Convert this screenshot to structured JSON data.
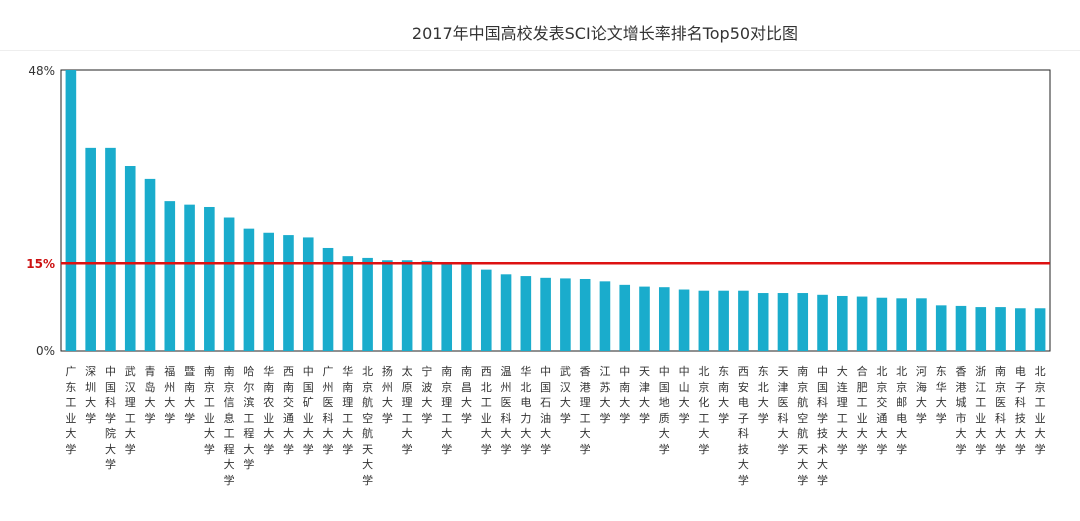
{
  "chart_data": {
    "type": "bar",
    "title": "2017年中国高校发表SCI论文增长率排名Top50对比图",
    "ylim": [
      0,
      48
    ],
    "y_ticks": [
      "48%",
      "15%",
      "0%"
    ],
    "reference_line": {
      "value": 15,
      "label": "15%",
      "color": "#dd1111"
    },
    "bar_color": "#1aaccc",
    "categories": [
      "广东工业大学",
      "深圳大学",
      "中国科学院大学",
      "武汉理工大学",
      "青岛大学",
      "福州大学",
      "暨南大学",
      "南京工业大学",
      "南京信息工程大学",
      "哈尔滨工程大学",
      "华南农业大学",
      "西南交通大学",
      "中国矿业大学",
      "广州医科大学",
      "华南理工大学",
      "北京航空航天大学",
      "扬州大学",
      "太原理工大学",
      "宁波大学",
      "南京理工大学",
      "南昌大学",
      "西北工业大学",
      "温州医科大学",
      "华北电力大学",
      "中国石油大学",
      "武汉大学",
      "香港理工大学",
      "江苏大学",
      "中南大学",
      "天津大学",
      "中国地质大学",
      "中山大学",
      "北京化工大学",
      "东南大学",
      "西安电子科技大学",
      "东北大学",
      "天津医科大学",
      "南京航空航天大学",
      "中国科学技术大学",
      "大连理工大学",
      "合肥工业大学",
      "北京交通大学",
      "北京邮电大学",
      "河海大学",
      "东华大学",
      "香港城市大学",
      "浙江工业大学",
      "南京医科大学",
      "电子科技大学",
      "北京工业大学"
    ],
    "values": [
      48,
      34.7,
      34.7,
      31.6,
      29.4,
      25.6,
      25,
      24.6,
      22.8,
      20.9,
      20.2,
      19.8,
      19.4,
      17.6,
      16.2,
      15.9,
      15.5,
      15.5,
      15.4,
      15.2,
      14.9,
      13.9,
      13.1,
      12.8,
      12.5,
      12.4,
      12.3,
      11.9,
      11.3,
      11.0,
      10.9,
      10.5,
      10.3,
      10.3,
      10.3,
      9.9,
      9.9,
      9.9,
      9.6,
      9.4,
      9.3,
      9.1,
      9.0,
      9.0,
      7.8,
      7.7,
      7.5,
      7.5,
      7.3,
      7.3
    ]
  }
}
